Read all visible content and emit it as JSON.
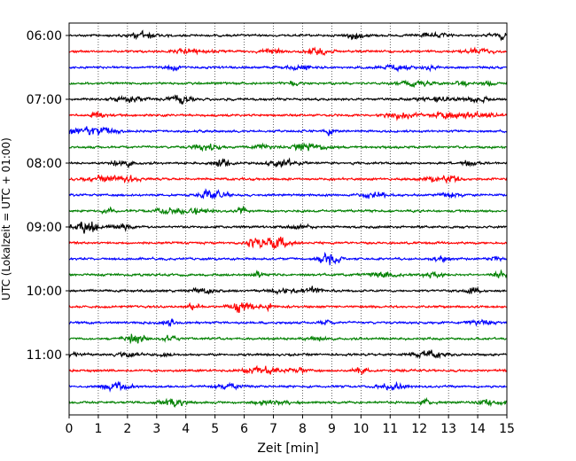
{
  "chart_data": {
    "type": "line",
    "subtype": "helicorder (seismogram drum plot)",
    "title": "",
    "xlabel": "Zeit  [min]",
    "ylabel": "UTC (Lokalzeit = UTC + 01:00)",
    "xlim": [
      0,
      15
    ],
    "x_ticks": [
      "0",
      "1",
      "2",
      "3",
      "4",
      "5",
      "6",
      "7",
      "8",
      "9",
      "10",
      "11",
      "12",
      "13",
      "14",
      "15"
    ],
    "y_tick_labels": [
      "06:00",
      "07:00",
      "08:00",
      "09:00",
      "10:00",
      "11:00"
    ],
    "grid": {
      "x": "dotted vertical lines at every minute",
      "y": "none"
    },
    "trace_colors": [
      "#000000",
      "#ff0000",
      "#0000ff",
      "#008000"
    ],
    "traces": [
      {
        "start": "06:00",
        "color": "#000000"
      },
      {
        "start": "06:15",
        "color": "#ff0000"
      },
      {
        "start": "06:30",
        "color": "#0000ff"
      },
      {
        "start": "06:45",
        "color": "#008000"
      },
      {
        "start": "07:00",
        "color": "#000000"
      },
      {
        "start": "07:15",
        "color": "#ff0000"
      },
      {
        "start": "07:30",
        "color": "#0000ff"
      },
      {
        "start": "07:45",
        "color": "#008000"
      },
      {
        "start": "08:00",
        "color": "#000000"
      },
      {
        "start": "08:15",
        "color": "#ff0000"
      },
      {
        "start": "08:30",
        "color": "#0000ff"
      },
      {
        "start": "08:45",
        "color": "#008000"
      },
      {
        "start": "09:00",
        "color": "#000000"
      },
      {
        "start": "09:15",
        "color": "#ff0000"
      },
      {
        "start": "09:30",
        "color": "#0000ff"
      },
      {
        "start": "09:45",
        "color": "#008000"
      },
      {
        "start": "10:00",
        "color": "#000000"
      },
      {
        "start": "10:15",
        "color": "#ff0000"
      },
      {
        "start": "10:30",
        "color": "#0000ff"
      },
      {
        "start": "10:45",
        "color": "#008000"
      },
      {
        "start": "11:00",
        "color": "#000000"
      },
      {
        "start": "11:15",
        "color": "#ff0000"
      },
      {
        "start": "11:30",
        "color": "#0000ff"
      },
      {
        "start": "11:45",
        "color": "#008000"
      }
    ]
  }
}
